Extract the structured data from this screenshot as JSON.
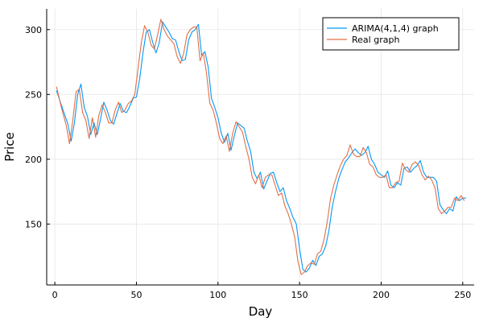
{
  "chart_data": {
    "type": "line",
    "title": "",
    "xlabel": "Day",
    "ylabel": "Price",
    "xlim": [
      -5,
      257
    ],
    "ylim": [
      103,
      316
    ],
    "xticks": [
      0,
      50,
      100,
      150,
      200,
      250
    ],
    "yticks": [
      150,
      200,
      250,
      300
    ],
    "grid": true,
    "legend_position": "top-right",
    "series": [
      {
        "name": "ARIMA(4,1,4) graph",
        "color": "#009AFA",
        "x": [
          1,
          5,
          8,
          10,
          12,
          14,
          16,
          18,
          20,
          22,
          24,
          26,
          28,
          30,
          32,
          34,
          36,
          38,
          40,
          42,
          44,
          46,
          48,
          50,
          52,
          54,
          56,
          58,
          60,
          62,
          64,
          66,
          68,
          70,
          72,
          74,
          76,
          78,
          80,
          82,
          84,
          86,
          88,
          90,
          92,
          94,
          96,
          98,
          100,
          102,
          104,
          106,
          108,
          110,
          112,
          114,
          116,
          118,
          120,
          122,
          124,
          126,
          128,
          130,
          132,
          134,
          136,
          138,
          140,
          142,
          144,
          146,
          148,
          150,
          152,
          154,
          156,
          158,
          160,
          162,
          164,
          166,
          168,
          170,
          172,
          174,
          176,
          178,
          180,
          182,
          184,
          186,
          188,
          190,
          192,
          194,
          196,
          198,
          200,
          202,
          204,
          206,
          208,
          210,
          212,
          214,
          216,
          218,
          220,
          222,
          224,
          226,
          228,
          230,
          232,
          234,
          236,
          238,
          240,
          242,
          244,
          246,
          248,
          250,
          252
        ],
        "y": [
          253,
          238,
          227,
          214,
          228,
          250,
          258,
          240,
          233,
          219,
          228,
          219,
          231,
          244,
          238,
          230,
          227,
          235,
          243,
          237,
          236,
          241,
          247,
          248,
          262,
          282,
          298,
          300,
          290,
          282,
          290,
          306,
          302,
          298,
          293,
          292,
          283,
          276,
          277,
          292,
          298,
          300,
          304,
          280,
          283,
          271,
          247,
          240,
          232,
          220,
          213,
          220,
          207,
          218,
          228,
          226,
          224,
          214,
          206,
          190,
          185,
          190,
          177,
          183,
          189,
          190,
          182,
          175,
          178,
          168,
          162,
          155,
          150,
          131,
          115,
          113,
          116,
          122,
          118,
          125,
          127,
          133,
          145,
          163,
          175,
          185,
          192,
          198,
          201,
          205,
          208,
          205,
          203,
          205,
          210,
          200,
          196,
          190,
          188,
          186,
          191,
          180,
          178,
          182,
          180,
          193,
          194,
          190,
          193,
          195,
          199,
          190,
          186,
          186,
          186,
          183,
          165,
          161,
          158,
          162,
          160,
          171,
          168,
          170,
          170
        ]
      },
      {
        "name": "Real graph",
        "color": "#E26F46",
        "x": [
          1,
          4,
          7,
          9,
          11,
          13,
          15,
          17,
          19,
          21,
          23,
          25,
          27,
          29,
          31,
          33,
          35,
          37,
          39,
          41,
          43,
          45,
          47,
          49,
          51,
          53,
          55,
          57,
          59,
          61,
          63,
          65,
          67,
          69,
          71,
          73,
          75,
          77,
          79,
          81,
          83,
          85,
          87,
          89,
          91,
          93,
          95,
          97,
          99,
          101,
          103,
          105,
          107,
          109,
          111,
          113,
          115,
          117,
          119,
          121,
          123,
          125,
          127,
          129,
          131,
          133,
          135,
          137,
          139,
          141,
          143,
          145,
          147,
          149,
          151,
          153,
          155,
          157,
          159,
          161,
          163,
          165,
          167,
          169,
          171,
          173,
          175,
          177,
          179,
          181,
          183,
          185,
          187,
          189,
          191,
          193,
          195,
          197,
          199,
          201,
          203,
          205,
          207,
          209,
          211,
          213,
          215,
          217,
          219,
          221,
          223,
          225,
          227,
          229,
          231,
          233,
          235,
          237,
          239,
          241,
          243,
          245,
          247,
          249,
          251
        ],
        "y": [
          256,
          240,
          226,
          212,
          230,
          252,
          254,
          236,
          230,
          216,
          232,
          217,
          234,
          242,
          236,
          228,
          228,
          238,
          244,
          236,
          238,
          243,
          245,
          250,
          270,
          290,
          303,
          298,
          288,
          285,
          296,
          308,
          300,
          295,
          292,
          289,
          279,
          274,
          282,
          296,
          300,
          302,
          302,
          276,
          282,
          266,
          243,
          238,
          228,
          216,
          212,
          218,
          206,
          220,
          229,
          225,
          221,
          210,
          200,
          186,
          181,
          188,
          178,
          186,
          188,
          188,
          180,
          172,
          174,
          164,
          158,
          150,
          140,
          121,
          111,
          113,
          118,
          120,
          119,
          127,
          129,
          138,
          152,
          170,
          180,
          188,
          195,
          200,
          203,
          211,
          204,
          202,
          202,
          209,
          205,
          196,
          194,
          188,
          186,
          186,
          188,
          178,
          178,
          182,
          183,
          197,
          192,
          190,
          196,
          198,
          195,
          188,
          184,
          187,
          184,
          178,
          162,
          158,
          160,
          163,
          163,
          170,
          168,
          172,
          168
        ]
      }
    ]
  }
}
